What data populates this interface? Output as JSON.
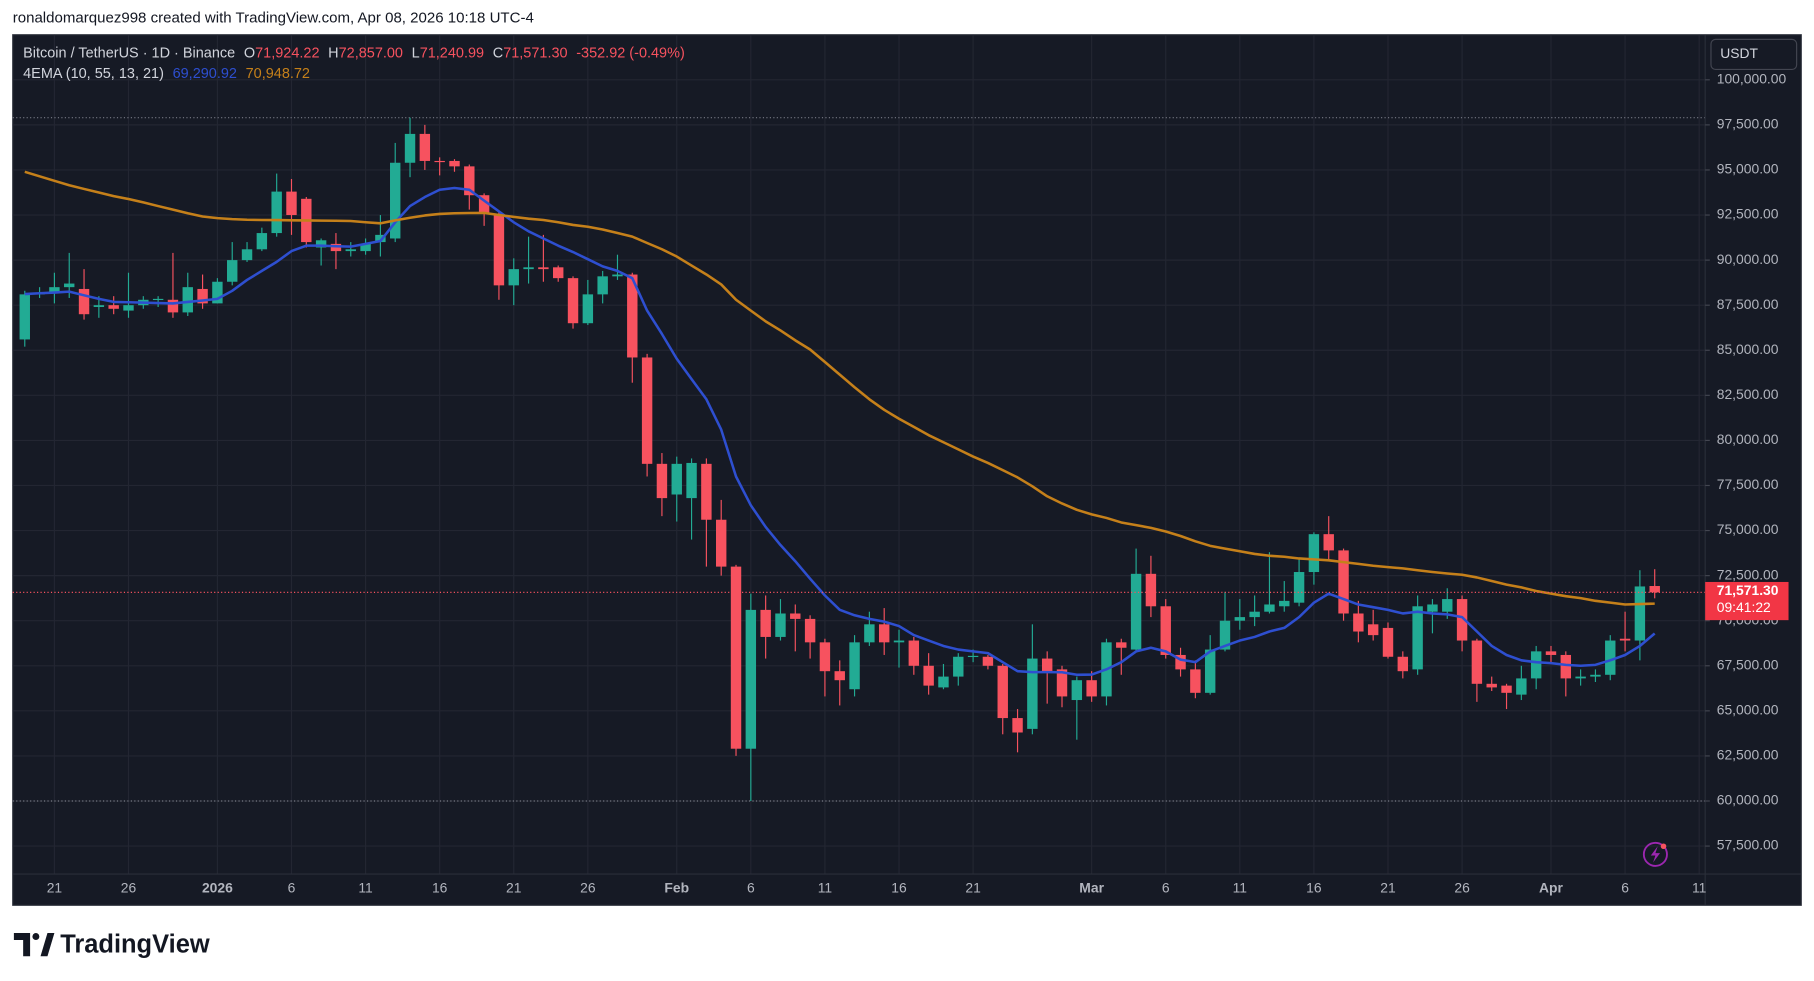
{
  "chart_data": {
    "type": "candlestick",
    "attribution": "ronaldomarquez998 created with TradingView.com, Apr 08, 2026 10:18 UTC-4",
    "title": "Bitcoin / TetherUS · 1D · Binance",
    "ohlc_prefixes": [
      "O",
      "H",
      "L",
      "C"
    ],
    "last_labels": {
      "open": "71,924.22",
      "high": "72,857.00",
      "low": "71,240.99",
      "close": "71,571.30"
    },
    "change_label": "-352.92 (-0.49%)",
    "indicator": "4EMA (10, 55, 13, 21)",
    "currency": "USDT",
    "countdown": "09:41:22",
    "brand": "TradingView",
    "up_color": "#22ab94",
    "down_color": "#f7525f",
    "grid": true,
    "categories": [
      null,
      null,
      "21",
      null,
      null,
      null,
      null,
      "26",
      null,
      null,
      null,
      null,
      null,
      "2026",
      null,
      null,
      null,
      null,
      "6",
      null,
      null,
      null,
      null,
      "11",
      null,
      null,
      null,
      null,
      "16",
      null,
      null,
      null,
      null,
      "21",
      null,
      null,
      null,
      null,
      "26",
      null,
      null,
      null,
      null,
      null,
      "Feb",
      null,
      null,
      null,
      null,
      "6",
      null,
      null,
      null,
      null,
      "11",
      null,
      null,
      null,
      null,
      "16",
      null,
      null,
      null,
      null,
      "21",
      null,
      null,
      null,
      null,
      null,
      null,
      null,
      "Mar",
      null,
      null,
      null,
      null,
      "6",
      null,
      null,
      null,
      null,
      "11",
      null,
      null,
      null,
      null,
      "16",
      null,
      null,
      null,
      null,
      "21",
      null,
      null,
      null,
      null,
      "26",
      null,
      null,
      null,
      null,
      null,
      "Apr",
      null,
      null,
      null,
      null,
      "6",
      null,
      null,
      null,
      null,
      "11"
    ],
    "open": [
      85600,
      88100,
      88200,
      88500,
      88400,
      87400,
      87500,
      87200,
      87500,
      87800,
      87800,
      87100,
      88400,
      87600,
      88800,
      90000,
      90600,
      91500,
      93800,
      93400,
      90700,
      90900,
      90500,
      90500,
      91000,
      91200,
      95400,
      97000,
      95500,
      95500,
      95200,
      93600,
      92500,
      88600,
      89500,
      89600,
      89600,
      89000,
      86500,
      88100,
      89100,
      89200,
      84600,
      78700,
      77000,
      76800,
      78700,
      75600,
      73000,
      62900,
      70600,
      69100,
      70400,
      70100,
      68800,
      67200,
      66200,
      68800,
      69800,
      68800,
      68900,
      67500,
      66300,
      66900,
      68000,
      68000,
      67500,
      64600,
      64000,
      67900,
      67300,
      65600,
      66700,
      65800,
      68800,
      68400,
      72600,
      70800,
      68100,
      67300,
      66000,
      68400,
      70000,
      70200,
      70500,
      70800,
      71000,
      72700,
      74800,
      73900,
      70400,
      69800,
      69600,
      68000,
      67300,
      70500,
      70500,
      71200,
      68900,
      66500,
      66400,
      65900,
      66800,
      68300,
      68100,
      66800,
      66900,
      67000,
      69000,
      68900,
      71924.22,
      null,
      null,
      null
    ],
    "high": [
      88300,
      88500,
      89300,
      90400,
      89500,
      88000,
      88000,
      89300,
      88000,
      88000,
      90400,
      89300,
      89200,
      89000,
      91000,
      91000,
      91800,
      94800,
      94500,
      93500,
      91200,
      91500,
      91000,
      91200,
      92500,
      96500,
      97900,
      97500,
      95700,
      95600,
      95300,
      93700,
      92700,
      90100,
      91300,
      91400,
      89700,
      89100,
      88900,
      89400,
      90300,
      89300,
      84800,
      79300,
      79100,
      79000,
      79000,
      76700,
      73100,
      71500,
      71400,
      71200,
      70900,
      70300,
      69000,
      67800,
      69200,
      70500,
      70700,
      69500,
      69100,
      68200,
      67600,
      68200,
      68400,
      68100,
      67600,
      65100,
      69800,
      68300,
      67500,
      66900,
      67200,
      69000,
      69000,
      74000,
      73600,
      71200,
      68500,
      67800,
      69200,
      71600,
      71200,
      71400,
      73800,
      72200,
      73400,
      74900,
      75800,
      74000,
      71100,
      70600,
      69900,
      68300,
      71400,
      71200,
      71800,
      71400,
      69000,
      66900,
      66500,
      67500,
      68600,
      68600,
      68300,
      67300,
      67300,
      69200,
      70500,
      72800,
      72857.0,
      null,
      null,
      null
    ],
    "low": [
      85200,
      87900,
      87600,
      87900,
      86700,
      86800,
      87000,
      86800,
      87300,
      87400,
      86800,
      86900,
      87300,
      87600,
      88600,
      89900,
      90500,
      91300,
      91400,
      90700,
      89700,
      89500,
      90200,
      90300,
      90200,
      91000,
      94600,
      95000,
      94700,
      94900,
      92800,
      91900,
      87800,
      87500,
      88700,
      88800,
      88800,
      86200,
      86400,
      87600,
      88900,
      83200,
      78000,
      75800,
      75500,
      74500,
      73000,
      72500,
      62500,
      60000,
      67900,
      68900,
      68300,
      67900,
      65800,
      65300,
      65800,
      68600,
      68100,
      67400,
      67000,
      65900,
      66200,
      66400,
      67700,
      67300,
      63700,
      62700,
      63700,
      65400,
      65200,
      63400,
      65500,
      65300,
      67000,
      68300,
      70200,
      67900,
      66900,
      65700,
      65900,
      68300,
      69500,
      69700,
      70400,
      70500,
      70800,
      72000,
      73400,
      70000,
      68800,
      68900,
      67900,
      66800,
      67000,
      69300,
      70100,
      68300,
      65500,
      66100,
      65100,
      65600,
      66200,
      67600,
      65800,
      66400,
      66600,
      66700,
      68300,
      67800,
      71240.99,
      null,
      null,
      null
    ],
    "close": [
      88100,
      88200,
      88500,
      88700,
      87000,
      87500,
      87300,
      87500,
      87800,
      87850,
      87100,
      88500,
      87600,
      88800,
      90000,
      90600,
      91500,
      93800,
      92500,
      91000,
      91100,
      90500,
      90600,
      90900,
      91400,
      95400,
      97000,
      95500,
      95450,
      95200,
      93600,
      92600,
      88600,
      89500,
      89600,
      89500,
      89000,
      86500,
      88100,
      89100,
      89200,
      84600,
      78700,
      76800,
      78700,
      78750,
      75600,
      73000,
      62900,
      70600,
      69100,
      70400,
      70100,
      68800,
      67200,
      66700,
      68800,
      69800,
      68800,
      68900,
      67500,
      66400,
      66900,
      68000,
      68050,
      67500,
      64600,
      63800,
      67900,
      67200,
      65800,
      66700,
      65800,
      68800,
      68500,
      72600,
      70800,
      68100,
      67300,
      66000,
      68400,
      70000,
      70200,
      70500,
      70900,
      71100,
      72700,
      74800,
      73900,
      70400,
      69400,
      69200,
      68000,
      67200,
      70800,
      70900,
      71200,
      68900,
      66500,
      66300,
      66000,
      66800,
      68300,
      68100,
      66800,
      66900,
      67000,
      68900,
      68900,
      71900,
      71571.3,
      null,
      null,
      null
    ],
    "series": [
      {
        "color": "#2e4fd0",
        "last_label": "69,290.92",
        "values": [
          88120,
          88160,
          88200,
          88250,
          88050,
          87850,
          87680,
          87660,
          87640,
          87620,
          87600,
          87680,
          87760,
          87850,
          88300,
          88900,
          89400,
          89900,
          90500,
          90800,
          90800,
          90770,
          90750,
          90900,
          91060,
          92100,
          93000,
          93500,
          93900,
          94000,
          93900,
          93300,
          92700,
          92100,
          91600,
          91200,
          90800,
          90450,
          90050,
          89650,
          89400,
          89000,
          87200,
          85900,
          84530,
          83400,
          82280,
          80600,
          78000,
          76400,
          75200,
          74200,
          73300,
          72330,
          71400,
          70600,
          70300,
          70100,
          69950,
          69700,
          69200,
          68900,
          68600,
          68400,
          68300,
          68200,
          67700,
          67200,
          67150,
          67150,
          67140,
          67000,
          67010,
          67300,
          67700,
          68300,
          68500,
          68300,
          67840,
          67700,
          68300,
          68600,
          68900,
          69100,
          69400,
          69600,
          70200,
          71000,
          71500,
          71200,
          70900,
          70750,
          70600,
          70400,
          70500,
          70400,
          70350,
          70200,
          69400,
          68600,
          68100,
          67800,
          67700,
          67650,
          67550,
          67500,
          67550,
          67800,
          68100,
          68600,
          69290.92,
          null,
          null,
          null
        ]
      },
      {
        "color": "#c5801a",
        "last_label": "70,948.72",
        "values": [
          94900,
          94650,
          94400,
          94150,
          93950,
          93750,
          93550,
          93390,
          93200,
          93000,
          92800,
          92600,
          92420,
          92330,
          92270,
          92240,
          92230,
          92220,
          92210,
          92200,
          92190,
          92180,
          92170,
          92100,
          92040,
          92200,
          92350,
          92480,
          92560,
          92600,
          92610,
          92620,
          92500,
          92400,
          92300,
          92230,
          92100,
          91950,
          91850,
          91700,
          91500,
          91300,
          90950,
          90600,
          90200,
          89700,
          89200,
          88650,
          87800,
          87200,
          86600,
          86100,
          85550,
          85040,
          84350,
          83650,
          82950,
          82280,
          81700,
          81200,
          80750,
          80290,
          79900,
          79500,
          79100,
          78750,
          78350,
          77950,
          77450,
          76900,
          76500,
          76150,
          75900,
          75700,
          75450,
          75300,
          75150,
          74950,
          74700,
          74400,
          74150,
          74000,
          73850,
          73700,
          73600,
          73550,
          73450,
          73400,
          73350,
          73250,
          73150,
          73050,
          72970,
          72900,
          72800,
          72700,
          72620,
          72550,
          72400,
          72200,
          72000,
          71850,
          71650,
          71500,
          71360,
          71250,
          71100,
          71000,
          70900,
          70920,
          70948.72,
          null,
          null,
          null
        ]
      }
    ],
    "ylim": [
      55950,
      102500
    ],
    "yticks": [
      {
        "value": 57500,
        "label": "57,500.00"
      },
      {
        "value": 60000,
        "label": "60,000.00"
      },
      {
        "value": 62500,
        "label": "62,500.00"
      },
      {
        "value": 65000,
        "label": "65,000.00"
      },
      {
        "value": 67500,
        "label": "67,500.00"
      },
      {
        "value": 70000,
        "label": "70,000.00"
      },
      {
        "value": 72500,
        "label": "72,500.00"
      },
      {
        "value": 75000,
        "label": "75,000.00"
      },
      {
        "value": 77500,
        "label": "77,500.00"
      },
      {
        "value": 80000,
        "label": "80,000.00"
      },
      {
        "value": 82500,
        "label": "82,500.00"
      },
      {
        "value": 85000,
        "label": "85,000.00"
      },
      {
        "value": 87500,
        "label": "87,500.00"
      },
      {
        "value": 90000,
        "label": "90,000.00"
      },
      {
        "value": 92500,
        "label": "92,500.00"
      },
      {
        "value": 95000,
        "label": "95,000.00"
      },
      {
        "value": 97500,
        "label": "97,500.00"
      },
      {
        "value": 100000,
        "label": "100,000.00"
      }
    ]
  }
}
